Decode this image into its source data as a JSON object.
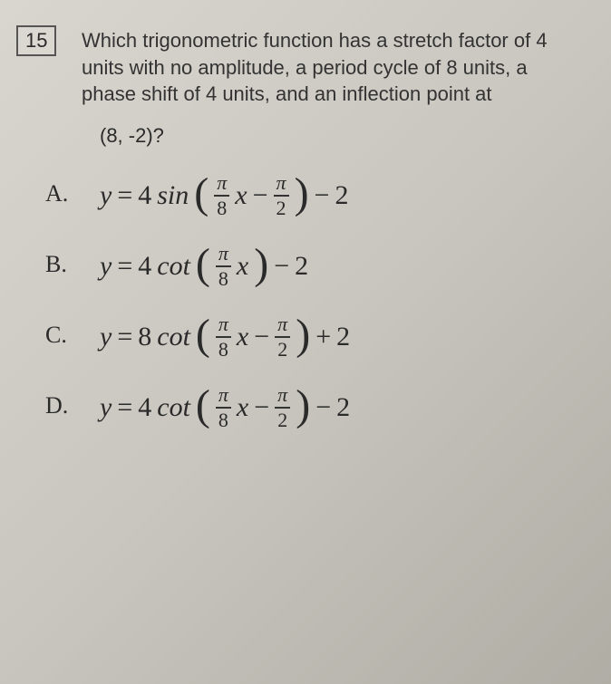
{
  "question": {
    "number": "15",
    "text": "Which trigonometric function has a stretch factor of 4 units with no amplitude, a period cycle of 8 units, a phase shift of 4 units, and an inflection point at",
    "point": "(8, -2)?"
  },
  "options": {
    "A": {
      "label": "A.",
      "coef": "4",
      "func": "sin",
      "frac1_num": "π",
      "frac1_den": "8",
      "inner_op": "−",
      "frac2_num": "π",
      "frac2_den": "2",
      "tail_op": "−",
      "tail_const": "2",
      "has_inner_frac2": true
    },
    "B": {
      "label": "B.",
      "coef": "4",
      "func": "cot",
      "frac1_num": "π",
      "frac1_den": "8",
      "tail_op": "−",
      "tail_const": "2",
      "has_inner_frac2": false
    },
    "C": {
      "label": "C.",
      "coef": "8",
      "func": "cot",
      "frac1_num": "π",
      "frac1_den": "8",
      "inner_op": "−",
      "frac2_num": "π",
      "frac2_den": "2",
      "tail_op": "+",
      "tail_const": "2",
      "has_inner_frac2": true
    },
    "D": {
      "label": "D.",
      "coef": "4",
      "func": "cot",
      "frac1_num": "π",
      "frac1_den": "8",
      "inner_op": "−",
      "frac2_num": "π",
      "frac2_den": "2",
      "tail_op": "−",
      "tail_const": "2",
      "has_inner_frac2": true
    }
  },
  "style": {
    "background": "#c8c6be",
    "text_color": "#2a2a2a",
    "qnum_border": "#555555",
    "body_font_size": 22,
    "eq_font_size": 30,
    "frac_font_size": 22
  }
}
